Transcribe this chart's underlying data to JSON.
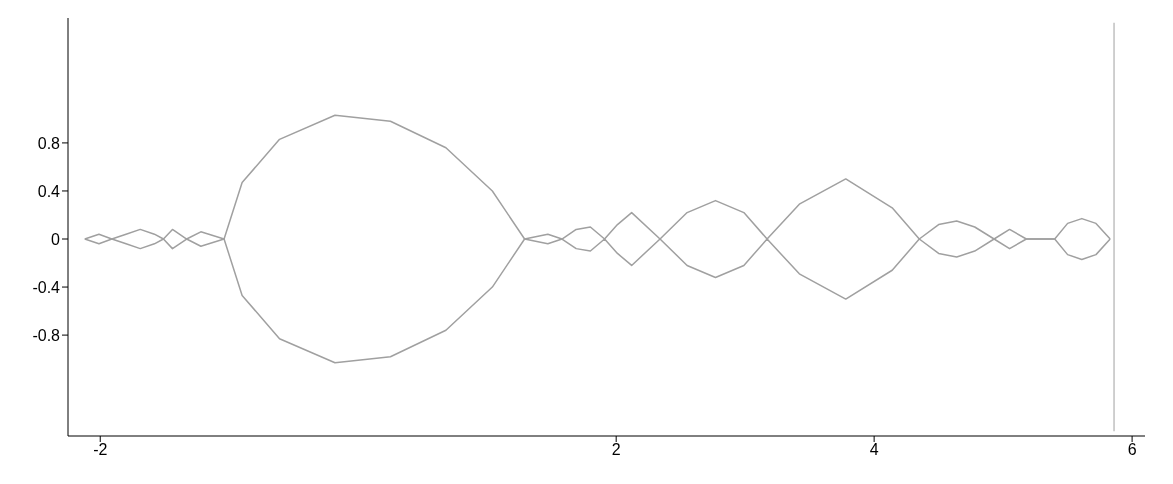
{
  "chart_data": {
    "type": "line",
    "xlim": [
      -2.25,
      6.1
    ],
    "ylim": [
      -1.64,
      1.84
    ],
    "xticks": [
      -2,
      2,
      4,
      6
    ],
    "yticks": [
      -0.8,
      -0.4,
      0,
      0.4,
      0.8
    ],
    "grid": false,
    "marker": "none",
    "line_style": "solid",
    "series": [
      {
        "color": "#a0a0a0",
        "x": [
          -2.12,
          -2.01,
          -1.91,
          -1.8,
          -1.69,
          -1.58,
          -1.51,
          -1.44,
          -1.33,
          -1.22,
          -1.04,
          -0.9,
          -0.61,
          -0.18,
          0.25,
          0.68,
          1.04,
          1.29,
          1.47,
          1.58,
          1.69,
          1.8,
          1.91,
          2.01,
          2.12,
          2.34,
          2.55,
          2.77,
          2.99,
          3.17,
          3.42,
          3.78,
          4.14,
          4.35,
          4.5,
          4.64,
          4.78,
          4.93,
          5.05,
          5.18,
          5.4,
          5.5,
          5.61,
          5.72,
          5.83
        ],
        "values": [
          0,
          0.04,
          0,
          0.04,
          0.08,
          0.04,
          0,
          0.08,
          0,
          0.06,
          0,
          0.47,
          0.83,
          1.03,
          0.98,
          0.76,
          0.4,
          0,
          0.04,
          0,
          0.08,
          0.1,
          0,
          0.12,
          0.22,
          0,
          0.22,
          0.32,
          0.22,
          0,
          0.29,
          0.5,
          0.26,
          0,
          0.12,
          0.15,
          0.1,
          0,
          0.08,
          0,
          0,
          0.13,
          0.17,
          0.13,
          0
        ]
      },
      {
        "color": "#a0a0a0",
        "x": [
          -2.12,
          -2.01,
          -1.91,
          -1.8,
          -1.69,
          -1.58,
          -1.51,
          -1.44,
          -1.33,
          -1.22,
          -1.04,
          -0.9,
          -0.61,
          -0.18,
          0.25,
          0.68,
          1.04,
          1.29,
          1.47,
          1.58,
          1.69,
          1.8,
          1.91,
          2.01,
          2.12,
          2.34,
          2.55,
          2.77,
          2.99,
          3.17,
          3.42,
          3.78,
          4.14,
          4.35,
          4.5,
          4.64,
          4.78,
          4.93,
          5.05,
          5.18,
          5.4,
          5.5,
          5.61,
          5.72,
          5.83
        ],
        "values": [
          0,
          -0.04,
          0,
          -0.04,
          -0.08,
          -0.04,
          0,
          -0.08,
          0,
          -0.06,
          0,
          -0.47,
          -0.83,
          -1.03,
          -0.98,
          -0.76,
          -0.4,
          0,
          -0.04,
          0,
          -0.08,
          -0.1,
          0,
          -0.12,
          -0.22,
          0,
          -0.22,
          -0.32,
          -0.22,
          0,
          -0.29,
          -0.5,
          -0.26,
          0,
          -0.12,
          -0.15,
          -0.1,
          0,
          -0.08,
          0,
          0,
          -0.13,
          -0.17,
          -0.13,
          0
        ]
      },
      {
        "color": "#c0c0c0",
        "x": [
          5.86,
          5.86
        ],
        "values": [
          1.8,
          -1.6
        ]
      }
    ]
  }
}
